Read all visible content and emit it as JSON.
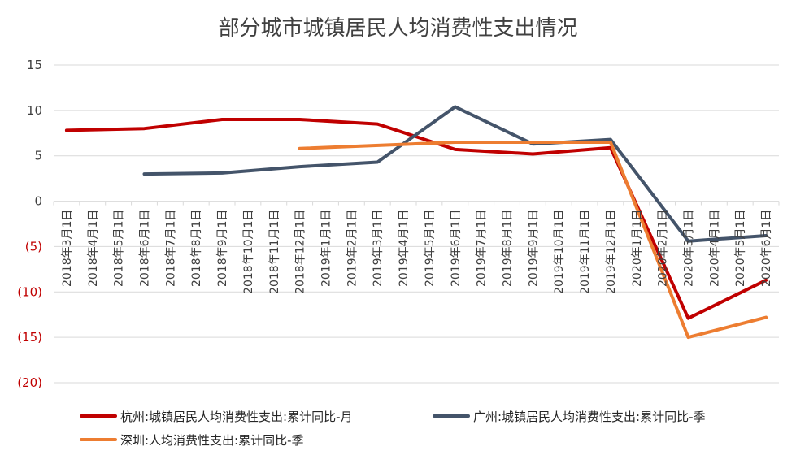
{
  "chart_data": {
    "type": "line",
    "title": "部分城市城镇居民人均消费性支出情况",
    "xlabel": "",
    "ylabel": "",
    "ylim": [
      -20,
      15
    ],
    "yticks": [
      15,
      10,
      5,
      0,
      -5,
      -10,
      -15,
      -20
    ],
    "ytick_labels": [
      "15",
      "10",
      "5",
      "0",
      "(5)",
      "(10)",
      "(15)",
      "(20)"
    ],
    "negative_label_color": "#c00000",
    "categories": [
      "2018年3月1日",
      "2018年4月1日",
      "2018年5月1日",
      "2018年6月1日",
      "2018年7月1日",
      "2018年8月1日",
      "2018年9月1日",
      "2018年10月1日",
      "2018年11月1日",
      "2018年12月1日",
      "2019年1月1日",
      "2019年2月1日",
      "2019年3月1日",
      "2019年4月1日",
      "2019年5月1日",
      "2019年6月1日",
      "2019年7月1日",
      "2019年8月1日",
      "2019年9月1日",
      "2019年10月1日",
      "2019年11月1日",
      "2019年12月1日",
      "2020年1月1日",
      "2020年2月1日",
      "2020年3月1日",
      "2020年4月1日",
      "2020年5月1日",
      "2020年6月1日"
    ],
    "grid": true,
    "legend_position": "bottom",
    "series": [
      {
        "name": "杭州:城镇居民人均消费性支出:累计同比-月",
        "color": "#c00000",
        "points": [
          [
            0,
            7.8
          ],
          [
            3,
            8.0
          ],
          [
            6,
            9.0
          ],
          [
            9,
            9.0
          ],
          [
            12,
            8.5
          ],
          [
            15,
            5.7
          ],
          [
            18,
            5.2
          ],
          [
            21,
            5.9
          ],
          [
            24,
            -12.9
          ],
          [
            27,
            -8.7
          ]
        ]
      },
      {
        "name": "广州:城镇居民人均消费性支出:累计同比-季",
        "color": "#44546a",
        "points": [
          [
            3,
            3.0
          ],
          [
            6,
            3.1
          ],
          [
            9,
            3.8
          ],
          [
            12,
            4.3
          ],
          [
            15,
            10.4
          ],
          [
            18,
            6.3
          ],
          [
            21,
            6.8
          ],
          [
            24,
            -4.4
          ],
          [
            27,
            -3.8
          ]
        ]
      },
      {
        "name": "深圳:人均消费性支出:累计同比-季",
        "color": "#ed7d31",
        "points": [
          [
            9,
            5.8
          ],
          [
            15,
            6.5
          ],
          [
            21,
            6.5
          ],
          [
            24,
            -15.0
          ],
          [
            27,
            -12.8
          ]
        ]
      }
    ]
  }
}
